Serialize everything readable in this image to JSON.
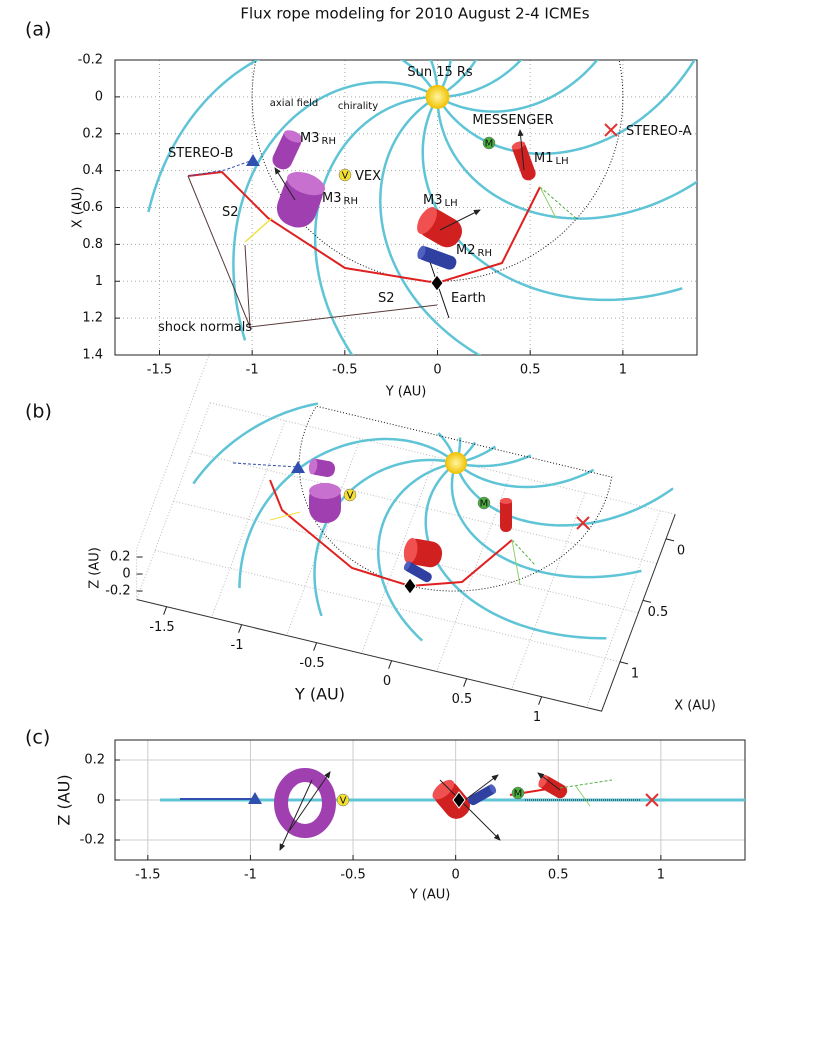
{
  "title": "Flux rope modeling for 2010 August 2-4 ICMEs",
  "panels": [
    {
      "label": "(a)",
      "xlabel": "Y (AU)",
      "ylabel": "X (AU)",
      "xlim": [
        -1.74,
        1.4
      ],
      "ylim": [
        -0.2,
        1.4
      ],
      "y_reversed": true,
      "grid": true,
      "xticks": [
        -1.5,
        -1,
        -0.5,
        0,
        0.5,
        1
      ],
      "yticks": [
        -0.2,
        0,
        0.2,
        0.4,
        0.6,
        0.8,
        1,
        1.2,
        1.4
      ],
      "annotations": [
        {
          "text": "Sun 15 Rs"
        },
        {
          "text": "axial field"
        },
        {
          "text": "chirality"
        },
        {
          "text": "MESSENGER"
        },
        {
          "text": "STEREO-A"
        },
        {
          "text": "STEREO-B"
        },
        {
          "text": "VEX"
        },
        {
          "text": "M3",
          "sub": "RH"
        },
        {
          "text": "M3",
          "sub": "RH"
        },
        {
          "text": "M3",
          "sub": "LH"
        },
        {
          "text": "M1",
          "sub": "LH"
        },
        {
          "text": "M2",
          "sub": "RH"
        },
        {
          "text": "S2"
        },
        {
          "text": "S2"
        },
        {
          "text": "Earth"
        },
        {
          "text": "shock normals"
        },
        {
          "text": "V"
        },
        {
          "text": "M"
        }
      ]
    },
    {
      "label": "(b)",
      "ylabel": "Y (AU)",
      "xlabel": "X (AU)",
      "zlabel": "Z (AU)",
      "yticks": [
        -1.5,
        -1,
        -0.5,
        0,
        0.5,
        1
      ],
      "xticks": [
        0,
        0.5,
        1
      ],
      "zticks": [
        0.2,
        0,
        -0.2
      ],
      "annotations": [
        {
          "text": "V"
        },
        {
          "text": "M"
        }
      ]
    },
    {
      "label": "(c)",
      "xlabel": "Y (AU)",
      "ylabel": "Z (AU)",
      "xlim": [
        -1.66,
        1.41
      ],
      "ylim": [
        -0.3,
        0.3
      ],
      "grid": true,
      "xticks": [
        -1.5,
        -1,
        -0.5,
        0,
        0.5,
        1
      ],
      "yticks": [
        -0.2,
        0,
        0.2
      ],
      "annotations": [
        {
          "text": "V"
        },
        {
          "text": "M"
        }
      ]
    }
  ]
}
